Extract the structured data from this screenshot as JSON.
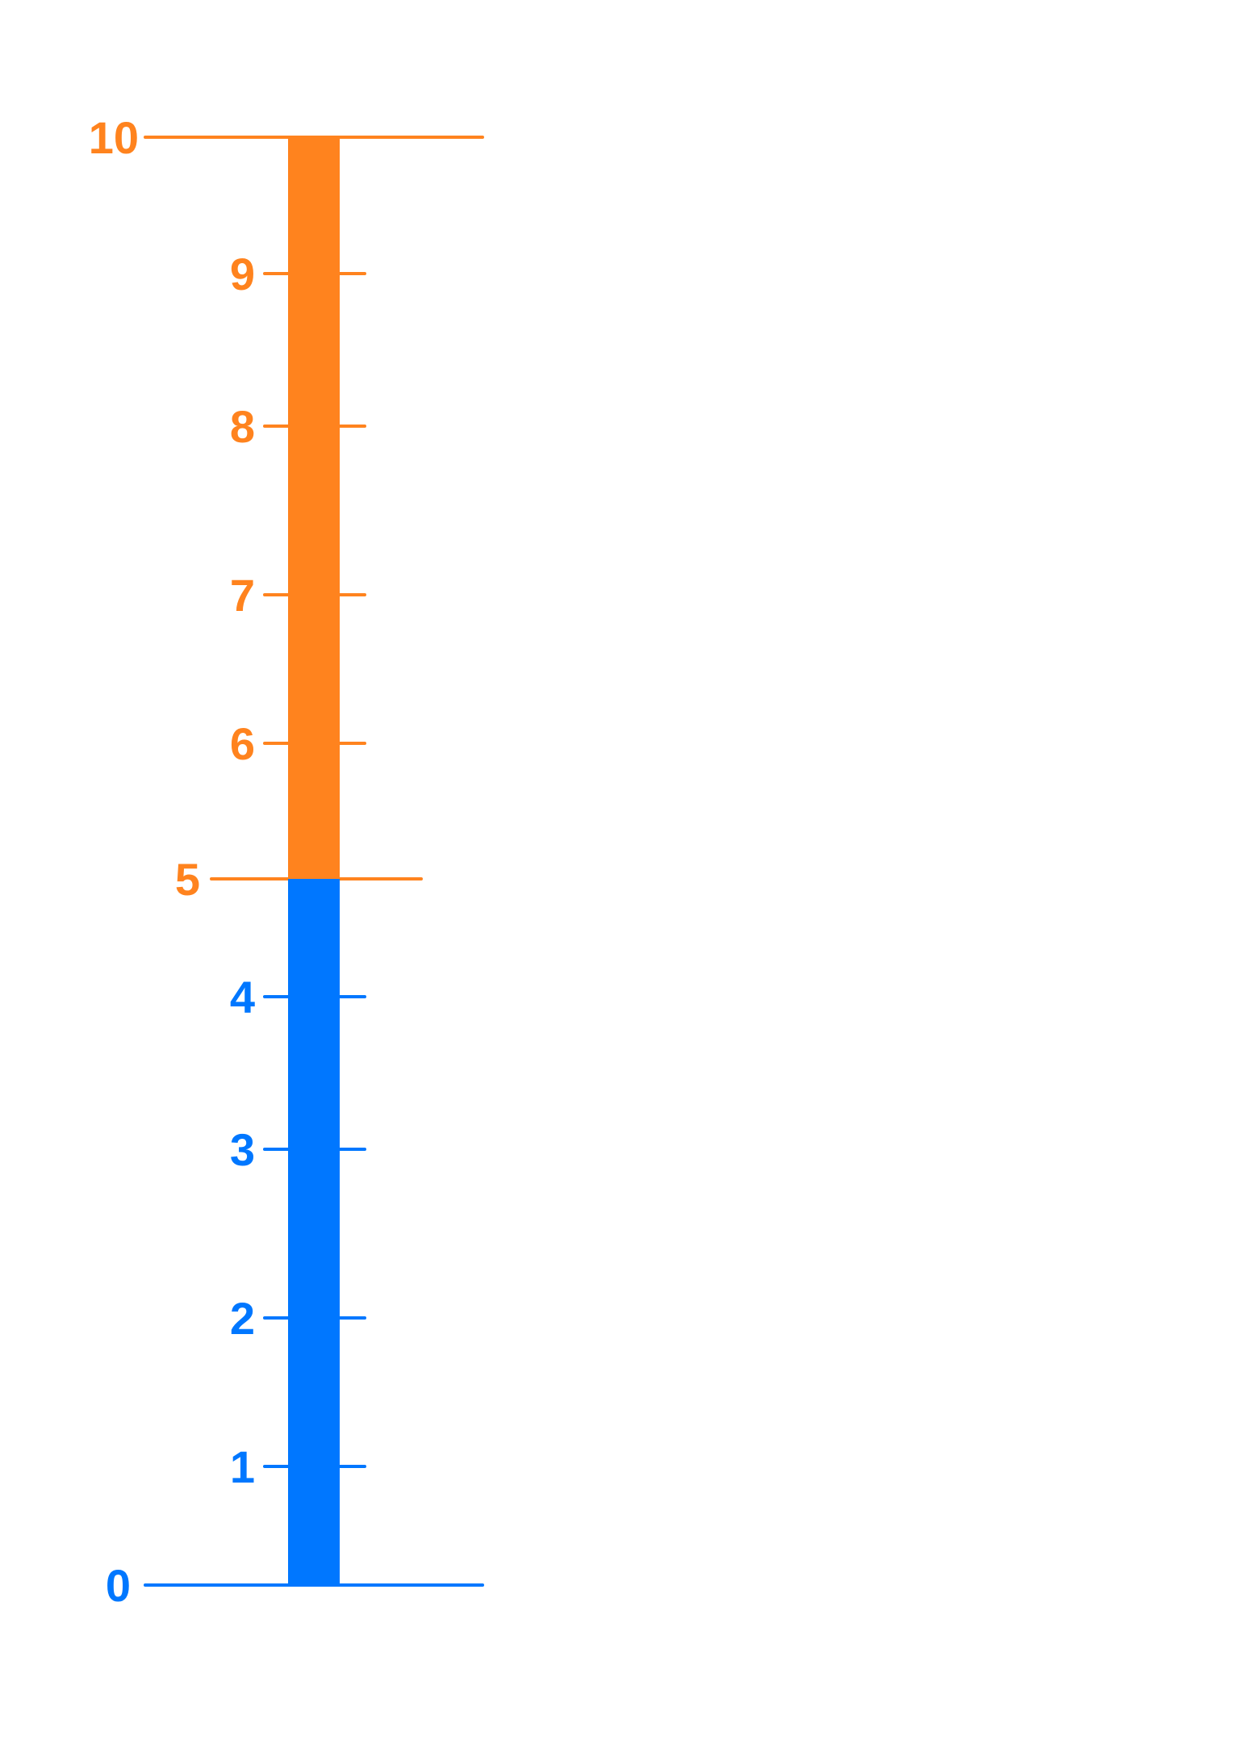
{
  "scale": {
    "min": 0,
    "max": 10,
    "split_value": 5,
    "lower_color": "#0077FF",
    "upper_color": "#FF831E",
    "labels": [
      {
        "value": 0,
        "text": "0"
      },
      {
        "value": 1,
        "text": "1"
      },
      {
        "value": 2,
        "text": "2"
      },
      {
        "value": 3,
        "text": "3"
      },
      {
        "value": 4,
        "text": "4"
      },
      {
        "value": 5,
        "text": "5"
      },
      {
        "value": 6,
        "text": "6"
      },
      {
        "value": 7,
        "text": "7"
      },
      {
        "value": 8,
        "text": "8"
      },
      {
        "value": 9,
        "text": "9"
      },
      {
        "value": 10,
        "text": "10"
      }
    ]
  }
}
